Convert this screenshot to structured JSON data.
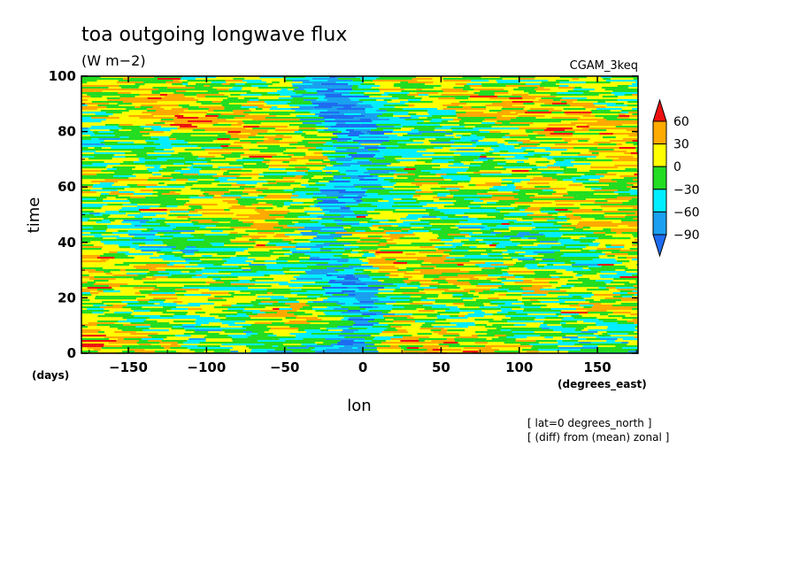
{
  "chart_data": {
    "type": "heatmap",
    "title": "toa outgoing longwave flux",
    "units": "(W m−2)",
    "case_label": "CGAM_3keq",
    "xlabel": "lon",
    "ylabel": "time",
    "x_units": "(degrees_east)",
    "y_units": "(days)",
    "xlim": [
      -180,
      176
    ],
    "ylim": [
      0,
      100
    ],
    "x_ticks": [
      -150,
      -100,
      -50,
      0,
      50,
      100,
      150
    ],
    "y_ticks": [
      0,
      20,
      40,
      60,
      80,
      100
    ],
    "x_tick_labels": [
      "−150",
      "−100",
      "−50",
      "0",
      "50",
      "100",
      "150"
    ],
    "y_tick_labels": [
      "0",
      "20",
      "40",
      "60",
      "80",
      "100"
    ],
    "annotations": [
      "[ lat=0 degrees_north ]",
      "[ (diff) from (mean) zonal ]"
    ],
    "colorbar": {
      "levels": [
        -90,
        -60,
        -30,
        0,
        30,
        60
      ],
      "level_labels": [
        "−90",
        "−60",
        "−30",
        "0",
        "30",
        "60"
      ],
      "colors": [
        "#1e6cf0",
        "#1aa0f0",
        "#00eeff",
        "#22dd22",
        "#ffff00",
        "#ffaa00",
        "#ee1111"
      ],
      "extend": "both"
    },
    "grid": false
  }
}
